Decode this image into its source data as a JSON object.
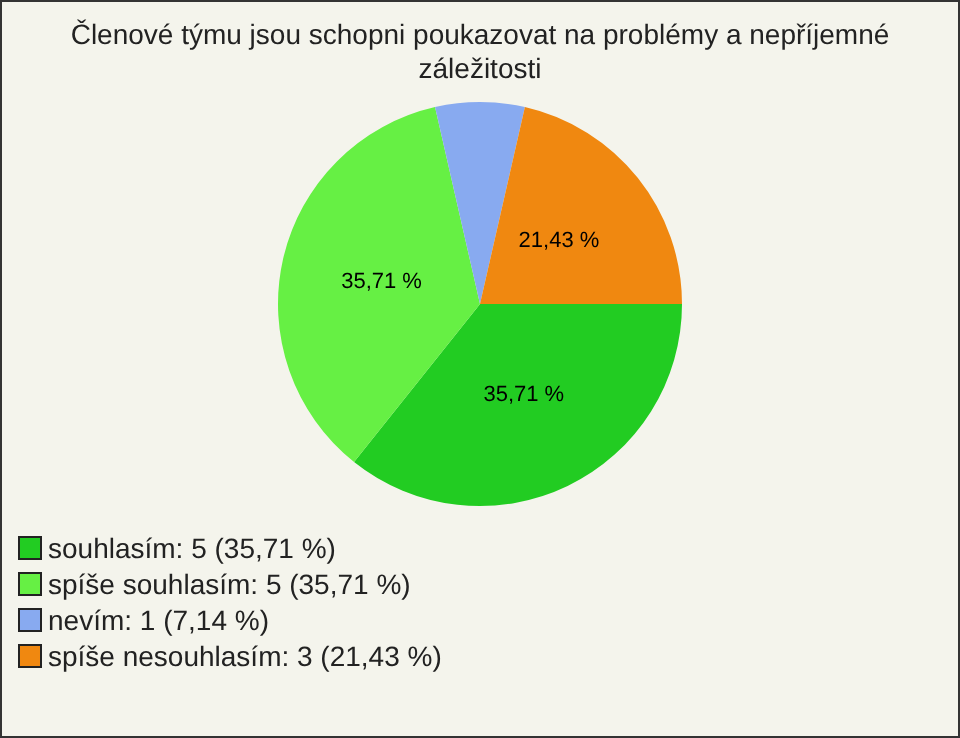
{
  "chart_data": {
    "type": "pie",
    "title": "Členové týmu jsou schopni poukazovat na problémy a nepříjemné záležitosti",
    "categories": [
      "souhlasím: 5 (35,71 %)",
      "spíše souhlasím: 5 (35,71 %)",
      "nevím: 1 (7,14 %)",
      "spíše nesouhlasím: 3 (21,43 %)"
    ],
    "values": [
      35.71,
      35.71,
      7.14,
      21.43
    ],
    "value_labels": [
      "35,71 %",
      "35,71 %",
      null,
      "21,43 %"
    ],
    "colors": [
      "#22cc22",
      "#66f044",
      "#88aaf0",
      "#f08810"
    ],
    "legend": "bottom left"
  }
}
